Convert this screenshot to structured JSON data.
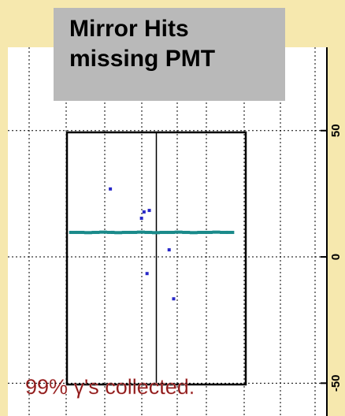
{
  "chart_data": {
    "type": "scatter",
    "title": "Mirror Hits\nmissing PMT",
    "annotation": "99% γ's collected.",
    "xlim": [
      -59,
      68
    ],
    "ylim": [
      -63,
      83
    ],
    "yticks": [
      -50,
      0,
      50
    ],
    "grid": true,
    "series": [
      {
        "color": "#2828c8",
        "x": [
          -18.2,
          -4.8,
          -5.8,
          -2.7,
          5.2,
          -3.6,
          7,
          -17.3
        ],
        "values": [
          26.9,
          17.8,
          15.3,
          18.4,
          2.8,
          -6.6,
          -16.6,
          9.7
        ]
      },
      {
        "color": "#1a8a8a",
        "x": [
          -34,
          -31,
          -28,
          -25,
          -22,
          -19,
          -16,
          -13,
          -10,
          -7,
          -4,
          -1,
          2,
          5,
          8,
          11,
          14,
          17,
          20,
          23,
          26,
          28.6
        ],
        "values": [
          9.7,
          9.7,
          9.6,
          9.7,
          9.8,
          9.7,
          9.6,
          9.7,
          9.7,
          9.8,
          9.7,
          9.6,
          9.7,
          9.7,
          9.8,
          9.7,
          9.6,
          9.7,
          9.7,
          9.8,
          9.7,
          9.7
        ]
      }
    ]
  }
}
